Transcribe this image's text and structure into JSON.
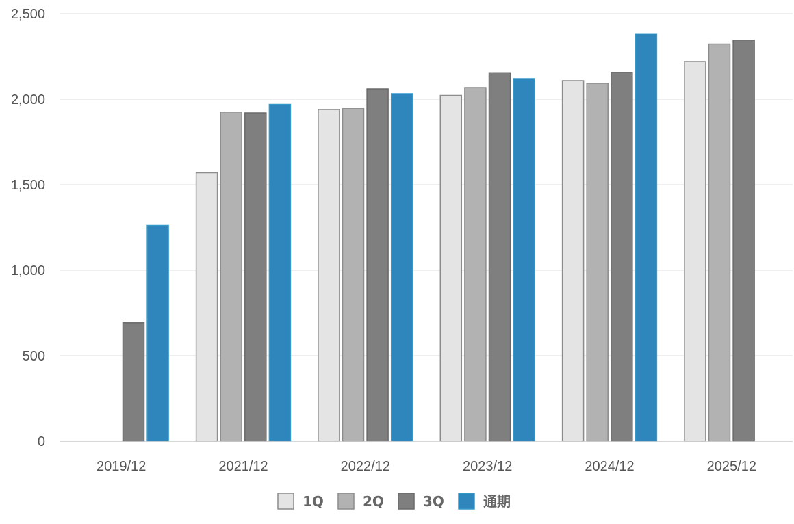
{
  "chart_data": {
    "type": "bar",
    "title": "",
    "xlabel": "",
    "ylabel": "",
    "categories": [
      "2019/12",
      "2021/12",
      "2022/12",
      "2023/12",
      "2024/12",
      "2025/12"
    ],
    "ylim": [
      0,
      2500
    ],
    "yticks": [
      0,
      500,
      1000,
      1500,
      2000,
      2500
    ],
    "ytick_labels": [
      "0",
      "500",
      "1,000",
      "1,500",
      "2,000",
      "2,500"
    ],
    "grid": true,
    "legend_position": "bottom",
    "series": [
      {
        "name": "1Q",
        "color": "#e4e4e4",
        "stroke": "#8c8c8c",
        "values": [
          null,
          1570,
          1940,
          2022,
          2108,
          2220
        ]
      },
      {
        "name": "2Q",
        "color": "#b2b2b2",
        "stroke": "#8c8c8c",
        "values": [
          null,
          1925,
          1945,
          2068,
          2092,
          2322
        ]
      },
      {
        "name": "3Q",
        "color": "#7f7f7f",
        "stroke": "#6a6a6a",
        "values": [
          693,
          1920,
          2060,
          2155,
          2157,
          2345
        ]
      },
      {
        "name": "通期",
        "color": "#2e86bd",
        "stroke": "#3399cc",
        "values": [
          1262,
          1970,
          2032,
          2120,
          2383,
          null
        ]
      }
    ]
  }
}
